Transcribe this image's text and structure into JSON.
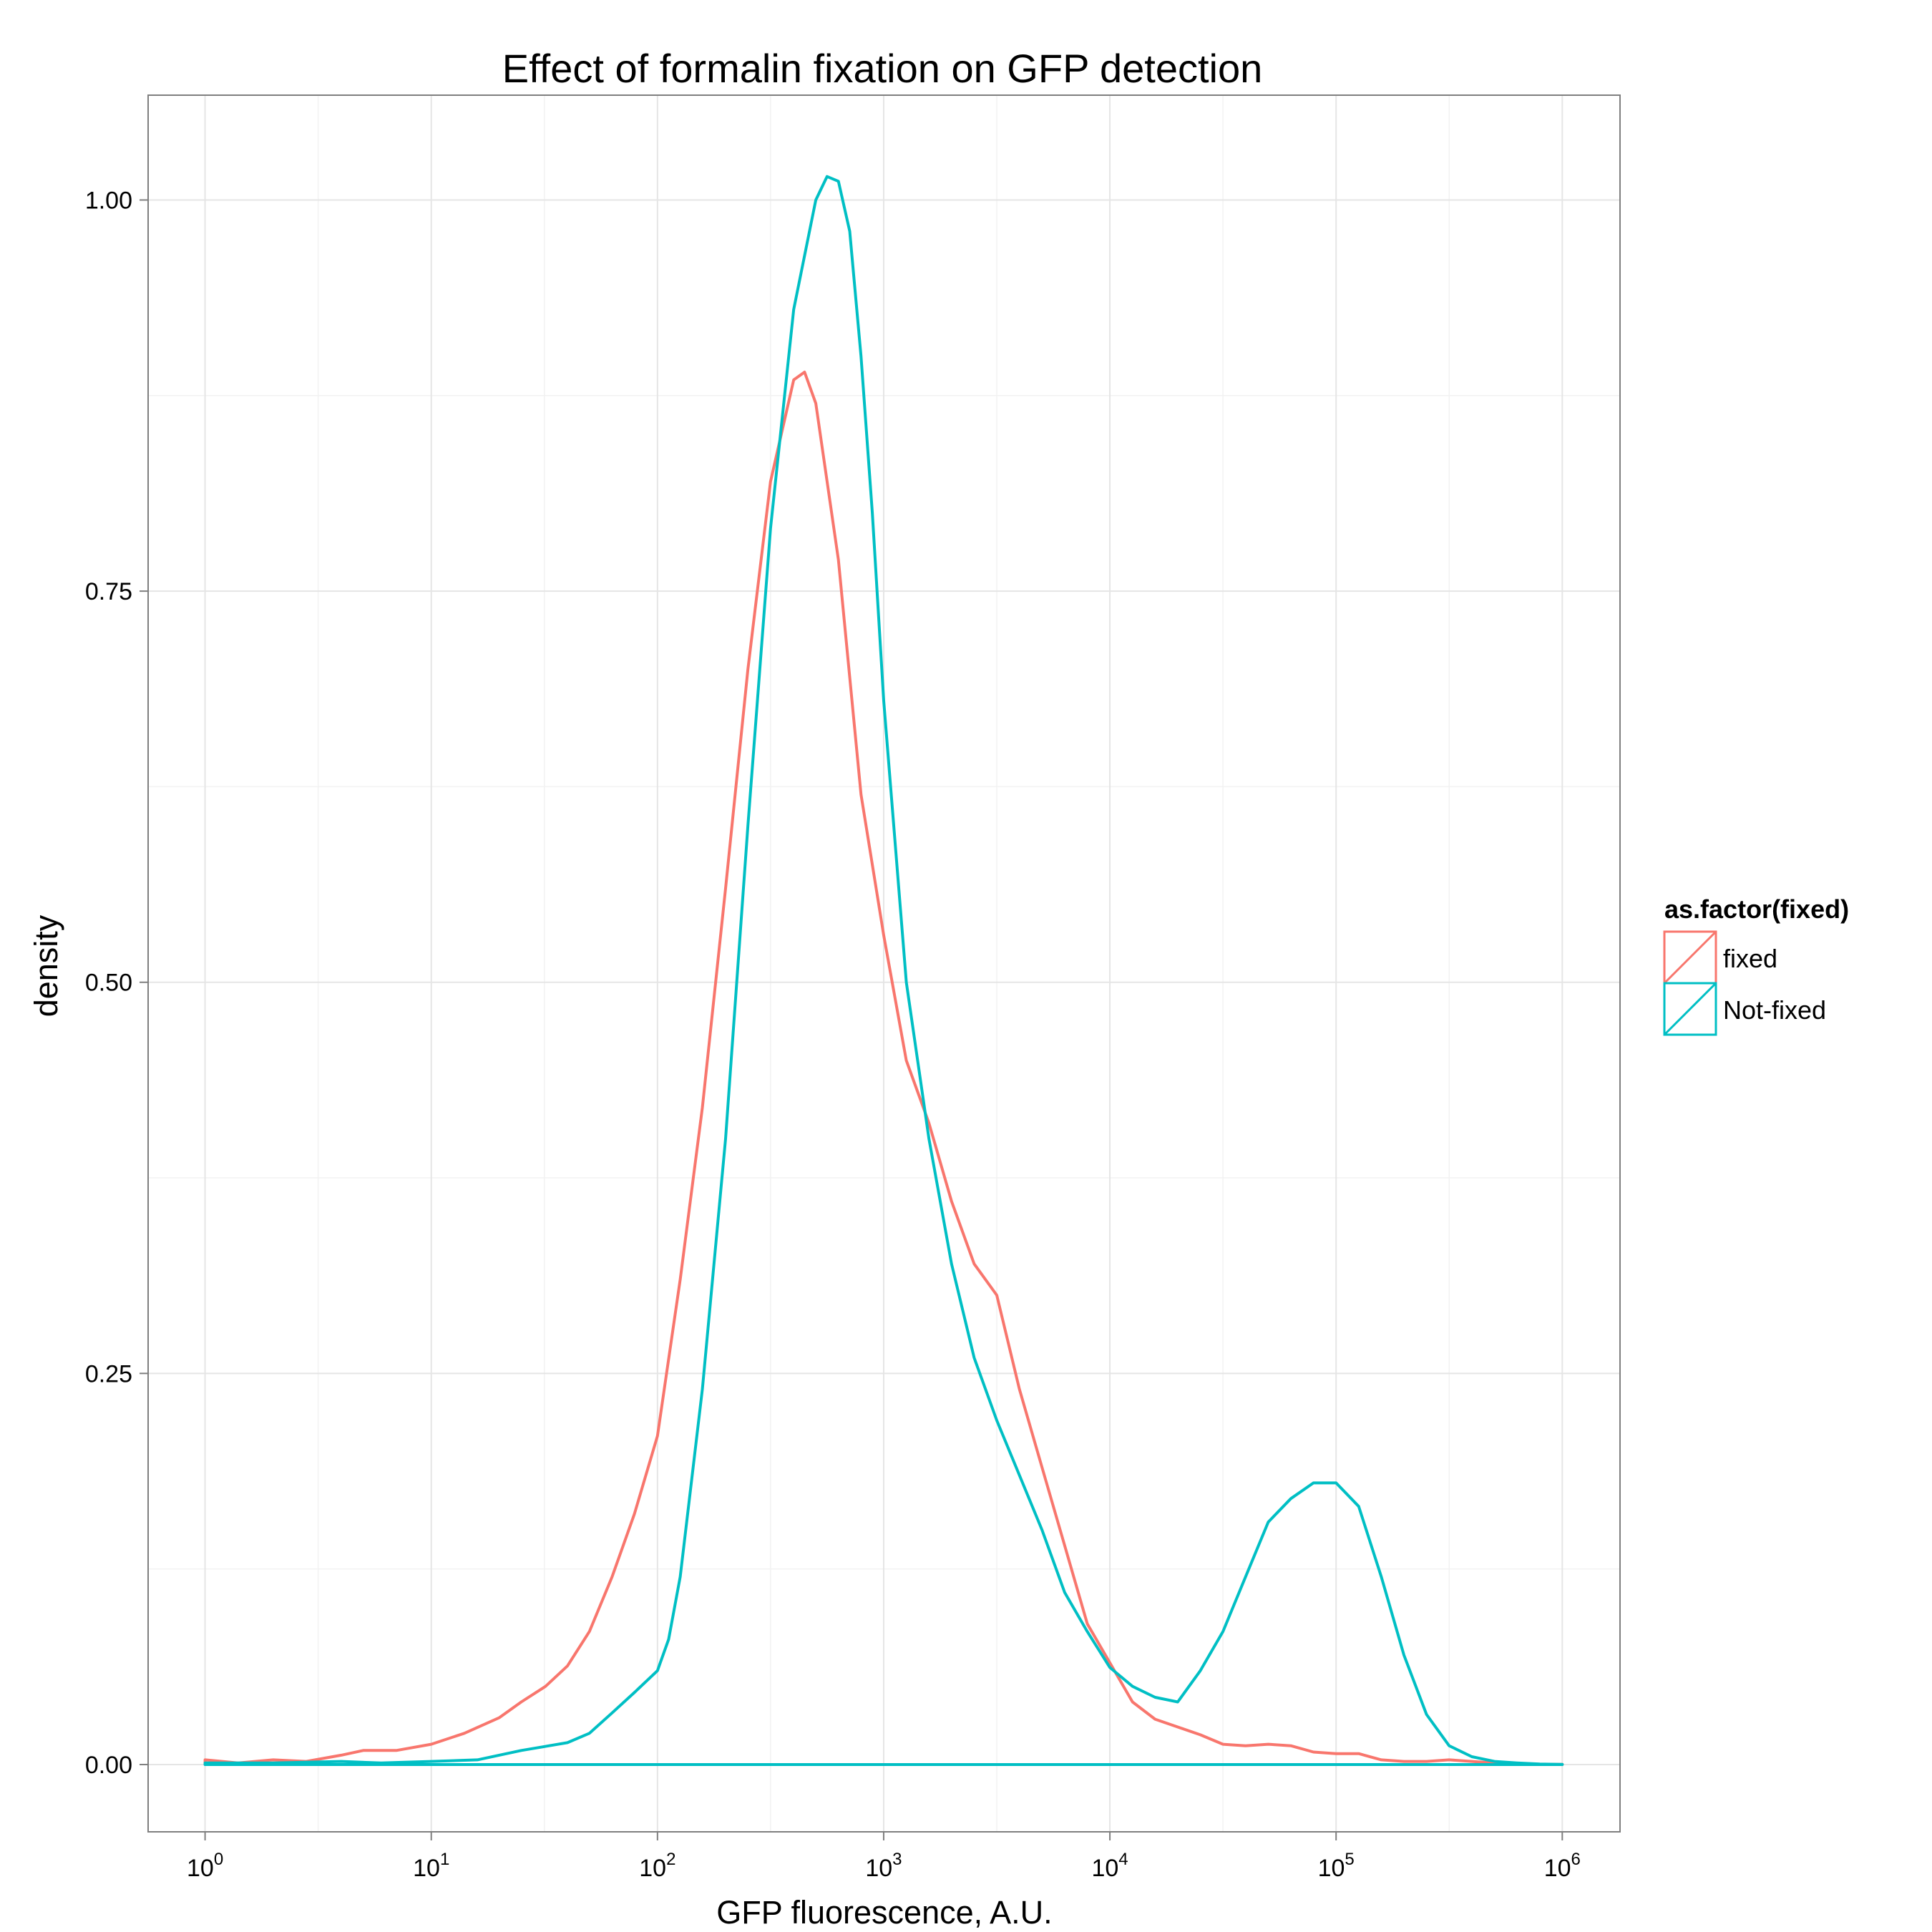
{
  "chart_data": {
    "type": "line",
    "title": "Effect of formalin fixation on GFP detection",
    "xlabel": "GFP fluorescence, A.U.",
    "ylabel": "density",
    "x_scale": "log10",
    "xlim": [
      0.56,
      1800000
    ],
    "ylim": [
      -0.043,
      1.067
    ],
    "x_ticks": [
      {
        "value": 1,
        "base": "10",
        "exp": "0"
      },
      {
        "value": 10,
        "base": "10",
        "exp": "1"
      },
      {
        "value": 100,
        "base": "10",
        "exp": "2"
      },
      {
        "value": 1000,
        "base": "10",
        "exp": "3"
      },
      {
        "value": 10000,
        "base": "10",
        "exp": "4"
      },
      {
        "value": 100000,
        "base": "10",
        "exp": "5"
      },
      {
        "value": 1000000,
        "base": "10",
        "exp": "6"
      }
    ],
    "y_ticks": [
      {
        "value": 0,
        "label": "0.00"
      },
      {
        "value": 0.25,
        "label": "0.25"
      },
      {
        "value": 0.5,
        "label": "0.50"
      },
      {
        "value": 0.75,
        "label": "0.75"
      },
      {
        "value": 1,
        "label": "1.00"
      }
    ],
    "grid": true,
    "legend": {
      "title": "as.factor(fixed)",
      "position": "right"
    },
    "series": [
      {
        "name": "fixed",
        "color": "#F8766D",
        "x": [
          1,
          1.4,
          2,
          2.8,
          4,
          5,
          7,
          10,
          14,
          20,
          25,
          32,
          40,
          50,
          63,
          79,
          100,
          126,
          158,
          200,
          251,
          316,
          400,
          447,
          501,
          631,
          794,
          1000,
          1259,
          1585,
          1995,
          2512,
          3162,
          3981,
          5012,
          6310,
          7943,
          10000,
          12589,
          15849,
          19953,
          25119,
          31623,
          39811,
          50119,
          63096,
          79433,
          100000,
          125893,
          158489,
          199526,
          251189,
          316228,
          398107,
          501187,
          630957,
          794328,
          1000000
        ],
        "y": [
          0.003,
          0.001,
          0.003,
          0.002,
          0.006,
          0.009,
          0.009,
          0.013,
          0.02,
          0.03,
          0.04,
          0.05,
          0.063,
          0.085,
          0.12,
          0.16,
          0.21,
          0.31,
          0.42,
          0.56,
          0.7,
          0.82,
          0.885,
          0.89,
          0.87,
          0.77,
          0.62,
          0.53,
          0.45,
          0.41,
          0.36,
          0.32,
          0.3,
          0.24,
          0.19,
          0.14,
          0.09,
          0.065,
          0.04,
          0.029,
          0.024,
          0.019,
          0.013,
          0.012,
          0.013,
          0.012,
          0.008,
          0.007,
          0.007,
          0.003,
          0.002,
          0.002,
          0.003,
          0.002,
          0.001,
          0.0005,
          0.0002,
          0.0001
        ]
      },
      {
        "name": "Not-fixed",
        "color": "#00BFC4",
        "x": [
          1,
          2,
          4,
          6,
          10,
          16,
          25,
          40,
          50,
          63,
          79,
          100,
          112,
          126,
          158,
          200,
          251,
          316,
          400,
          501,
          562,
          631,
          708,
          794,
          891,
          1000,
          1259,
          1585,
          1995,
          2512,
          3162,
          3981,
          5012,
          6310,
          7943,
          10000,
          12589,
          15849,
          19953,
          25119,
          31623,
          39811,
          50119,
          63096,
          79433,
          100000,
          125893,
          158489,
          199526,
          251189,
          316228,
          398107,
          501187,
          630957,
          794328,
          1000000
        ],
        "y": [
          0.001,
          0.001,
          0.002,
          0.001,
          0.002,
          0.003,
          0.009,
          0.014,
          0.02,
          0.033,
          0.046,
          0.06,
          0.08,
          0.12,
          0.24,
          0.4,
          0.6,
          0.79,
          0.93,
          1.0,
          1.015,
          1.012,
          0.98,
          0.9,
          0.8,
          0.68,
          0.5,
          0.4,
          0.32,
          0.26,
          0.22,
          0.185,
          0.15,
          0.11,
          0.085,
          0.062,
          0.05,
          0.043,
          0.04,
          0.06,
          0.085,
          0.12,
          0.155,
          0.17,
          0.18,
          0.18,
          0.165,
          0.12,
          0.07,
          0.032,
          0.012,
          0.005,
          0.002,
          0.001,
          0.0003,
          0.0001
        ]
      }
    ]
  }
}
